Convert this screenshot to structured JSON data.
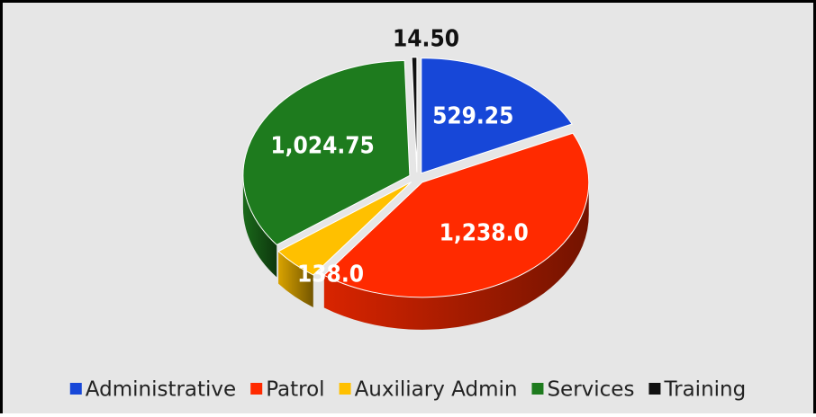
{
  "chart_data": {
    "type": "pie",
    "categories": [
      "Administrative",
      "Patrol",
      "Auxiliary Admin",
      "Services",
      "Training"
    ],
    "values": [
      529.25,
      1238.0,
      138.0,
      1024.75,
      14.5
    ],
    "value_labels": [
      "529.25",
      "1,238.0",
      "138.0",
      "1,024.75",
      "14.50"
    ],
    "colors": [
      "#1747d8",
      "#ff2a00",
      "#ffc000",
      "#1e7b1e",
      "#111111"
    ],
    "legend": "bottom"
  }
}
